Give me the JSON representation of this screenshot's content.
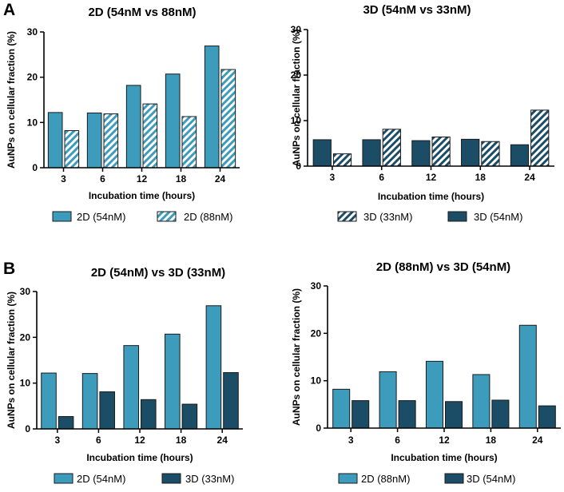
{
  "figure": {
    "panel_letters": [
      "A",
      "B"
    ],
    "colors": {
      "light": "#3d9cbc",
      "dark": "#1b4d66",
      "stroke": "#1a1a1a",
      "hatch_bg": "#ffffff"
    }
  },
  "chart_data": [
    {
      "type": "bar",
      "title": "2D (54nM vs 88nM)",
      "xlabel": "Incubation time (hours)",
      "ylabel": "AuNPs on cellular fraction (%)",
      "ylim": [
        0,
        30
      ],
      "yticks": [
        0,
        10,
        20,
        30
      ],
      "categories": [
        "3",
        "6",
        "12",
        "18",
        "24"
      ],
      "series": [
        {
          "name": "2D (54nM)",
          "style": "light-solid",
          "values": [
            12.2,
            12.1,
            18.2,
            20.7,
            26.9
          ]
        },
        {
          "name": "2D (88nM)",
          "style": "light-hatch",
          "values": [
            8.2,
            11.9,
            14.1,
            11.3,
            21.7
          ]
        }
      ],
      "legend": [
        {
          "label": "2D (54nM)",
          "style": "light-solid"
        },
        {
          "label": "2D (88nM)",
          "style": "light-hatch"
        }
      ]
    },
    {
      "type": "bar",
      "title": "3D (54nM vs 33nM)",
      "xlabel": "Incubation time (hours)",
      "ylabel": "AuNPs on cellular fraction (%)",
      "ylim": [
        0,
        30
      ],
      "yticks": [
        0,
        10,
        20,
        30
      ],
      "categories": [
        "3",
        "6",
        "12",
        "18",
        "24"
      ],
      "series": [
        {
          "name": "3D (54nM)",
          "style": "dark-solid",
          "values": [
            5.8,
            5.8,
            5.6,
            5.9,
            4.7
          ]
        },
        {
          "name": "3D (33nM)",
          "style": "dark-hatch",
          "values": [
            2.7,
            8.1,
            6.4,
            5.4,
            12.3
          ]
        }
      ],
      "legend": [
        {
          "label": "3D (33nM)",
          "style": "dark-hatch"
        },
        {
          "label": "3D (54nM)",
          "style": "dark-solid"
        }
      ]
    },
    {
      "type": "bar",
      "title": "2D (54nM) vs 3D (33nM)",
      "xlabel": "Incubation time (hours)",
      "ylabel": "AuNPs on cellular fraction (%)",
      "ylim": [
        0,
        30
      ],
      "yticks": [
        0,
        10,
        20,
        30
      ],
      "categories": [
        "3",
        "6",
        "12",
        "18",
        "24"
      ],
      "series": [
        {
          "name": "2D (54nM)",
          "style": "light-solid",
          "values": [
            12.2,
            12.1,
            18.2,
            20.7,
            26.9
          ]
        },
        {
          "name": "3D (33nM)",
          "style": "dark-solid",
          "values": [
            2.7,
            8.1,
            6.4,
            5.4,
            12.3
          ]
        }
      ],
      "legend": [
        {
          "label": "2D (54nM)",
          "style": "light-solid"
        },
        {
          "label": "3D (33nM)",
          "style": "dark-solid"
        }
      ]
    },
    {
      "type": "bar",
      "title": "2D (88nM) vs 3D (54nM)",
      "xlabel": "Incubation time (hours)",
      "ylabel": "AuNPs on cellular fraction (%)",
      "ylim": [
        0,
        30
      ],
      "yticks": [
        0,
        10,
        20,
        30
      ],
      "categories": [
        "3",
        "6",
        "12",
        "18",
        "24"
      ],
      "series": [
        {
          "name": "2D (88nM)",
          "style": "light-solid",
          "values": [
            8.2,
            11.9,
            14.1,
            11.3,
            21.7
          ]
        },
        {
          "name": "3D (54nM)",
          "style": "dark-solid",
          "values": [
            5.8,
            5.8,
            5.6,
            5.9,
            4.7
          ]
        }
      ],
      "legend": [
        {
          "label": "2D (88nM)",
          "style": "light-solid"
        },
        {
          "label": "3D (54nM)",
          "style": "dark-solid"
        }
      ]
    }
  ]
}
